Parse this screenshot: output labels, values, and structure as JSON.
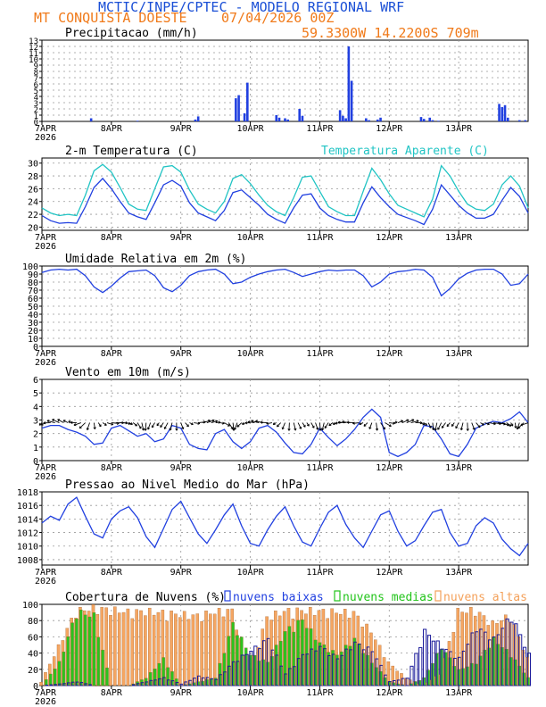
{
  "header": {
    "title": "MCTIC/INPE/CPTEC - MODELO REGIONAL WRF",
    "location": "MT CONQUISTA DOESTE",
    "run_time": "07/04/2026 00Z",
    "coordinates": "59.3300W 14.2200S 709m"
  },
  "colors": {
    "blue": "#2140e0",
    "cyan": "#21c4c4",
    "green": "#22c41a",
    "orange": "#f4a15a",
    "darkblue": "#1a1a9a",
    "arrow": "#000000"
  },
  "x_axis": {
    "tick_labels": [
      "7APR",
      "8APR",
      "9APR",
      "10APR",
      "11APR",
      "12APR",
      "13APR"
    ],
    "year_label": "2026",
    "hours_total": 168
  },
  "chart_data": [
    {
      "type": "bar",
      "title": "Precipitacao (mm/h)",
      "ylim": [
        0,
        13
      ],
      "yticks": [
        0,
        1,
        2,
        3,
        4,
        5,
        6,
        7,
        8,
        9,
        10,
        11,
        12,
        13
      ],
      "x_hours": [
        17,
        33,
        53,
        54,
        67,
        68,
        70,
        71,
        81,
        82,
        84,
        85,
        89,
        90,
        103,
        104,
        105,
        106,
        107,
        112,
        113,
        116,
        117,
        131,
        132,
        134,
        135,
        137,
        158,
        159,
        160,
        161,
        165,
        167
      ],
      "values": [
        0.5,
        0.1,
        0.3,
        0.8,
        3.7,
        4.2,
        1.3,
        6.2,
        1.0,
        0.6,
        0.5,
        0.3,
        2.0,
        0.9,
        1.8,
        0.9,
        0.5,
        12.0,
        6.5,
        0.5,
        0.2,
        0.3,
        0.6,
        0.7,
        0.4,
        0.6,
        0.2,
        0.1,
        2.8,
        2.3,
        2.6,
        0.6,
        0.2,
        0.2
      ]
    },
    {
      "type": "line",
      "title": "2-m Temperatura (C)",
      "legend_right": "Temperatura Aparente (C)",
      "ylim": [
        19.5,
        30.8
      ],
      "yticks": [
        20,
        22,
        24,
        26,
        28,
        30
      ],
      "series": [
        {
          "name": "2-m Temperatura (C)",
          "color": "blue",
          "x": [
            0,
            3,
            6,
            9,
            12,
            15,
            18,
            21,
            24,
            27,
            30,
            33,
            36,
            39,
            42,
            45,
            48,
            51,
            54,
            57,
            60,
            63,
            66,
            69,
            72,
            75,
            78,
            81,
            84,
            87,
            90,
            93,
            96,
            99,
            102,
            105,
            108,
            111,
            114,
            117,
            120,
            123,
            126,
            129,
            132,
            135,
            138,
            141,
            144,
            147,
            150,
            153,
            156,
            159,
            162,
            165,
            168
          ],
          "values": [
            21.8,
            21.0,
            20.6,
            20.7,
            20.6,
            23.2,
            26.2,
            27.6,
            26.0,
            24.0,
            22.2,
            21.6,
            21.2,
            23.8,
            26.6,
            27.3,
            26.4,
            23.8,
            22.2,
            21.6,
            21.0,
            22.6,
            25.4,
            25.8,
            24.6,
            23.4,
            22.0,
            21.2,
            20.6,
            23.0,
            25.0,
            25.2,
            23.0,
            21.8,
            21.2,
            20.8,
            20.8,
            23.8,
            26.3,
            24.6,
            23.2,
            22.0,
            21.5,
            21.0,
            20.4,
            22.8,
            26.6,
            25.0,
            23.4,
            22.2,
            21.4,
            21.4,
            22.0,
            24.2,
            26.2,
            24.8,
            22.2
          ]
        },
        {
          "name": "Temperatura Aparente (C)",
          "color": "cyan",
          "x": [
            0,
            3,
            6,
            9,
            12,
            15,
            18,
            21,
            24,
            27,
            30,
            33,
            36,
            39,
            42,
            45,
            48,
            51,
            54,
            57,
            60,
            63,
            66,
            69,
            72,
            75,
            78,
            81,
            84,
            87,
            90,
            93,
            96,
            99,
            102,
            105,
            108,
            111,
            114,
            117,
            120,
            123,
            126,
            129,
            132,
            135,
            138,
            141,
            144,
            147,
            150,
            153,
            156,
            159,
            162,
            165,
            168
          ],
          "values": [
            23.0,
            22.2,
            21.8,
            22.0,
            21.8,
            25.0,
            28.8,
            29.8,
            28.6,
            26.2,
            23.6,
            22.8,
            22.6,
            26.0,
            29.4,
            29.6,
            28.6,
            25.8,
            23.6,
            22.8,
            22.2,
            24.0,
            27.6,
            28.2,
            26.8,
            25.0,
            23.4,
            22.4,
            21.8,
            24.6,
            27.8,
            28.0,
            25.6,
            23.2,
            22.4,
            21.8,
            21.8,
            25.6,
            29.2,
            27.4,
            25.2,
            23.4,
            22.8,
            22.2,
            21.6,
            24.4,
            29.6,
            28.0,
            25.6,
            23.6,
            22.8,
            22.6,
            23.6,
            26.6,
            28.0,
            26.4,
            23.0
          ]
        }
      ]
    },
    {
      "type": "line",
      "title": "Umidade Relativa em 2m (%)",
      "ylim": [
        0,
        100
      ],
      "yticks": [
        0,
        10,
        20,
        30,
        40,
        50,
        60,
        70,
        80,
        90,
        100
      ],
      "series": [
        {
          "name": "Umidade Relativa em 2m (%)",
          "color": "blue",
          "x": [
            0,
            3,
            6,
            9,
            12,
            15,
            18,
            21,
            24,
            27,
            30,
            33,
            36,
            39,
            42,
            45,
            48,
            51,
            54,
            57,
            60,
            63,
            66,
            69,
            72,
            75,
            78,
            81,
            84,
            87,
            90,
            93,
            96,
            99,
            102,
            105,
            108,
            111,
            114,
            117,
            120,
            123,
            126,
            129,
            132,
            135,
            138,
            141,
            144,
            147,
            150,
            153,
            156,
            159,
            162,
            165,
            168
          ],
          "values": [
            92,
            95,
            96,
            95,
            96,
            88,
            74,
            67,
            75,
            85,
            93,
            94,
            95,
            88,
            73,
            68,
            76,
            88,
            93,
            95,
            96,
            90,
            78,
            80,
            86,
            90,
            93,
            95,
            96,
            92,
            87,
            90,
            93,
            95,
            94,
            95,
            95,
            88,
            74,
            80,
            90,
            93,
            94,
            96,
            95,
            86,
            63,
            72,
            84,
            91,
            95,
            96,
            96,
            90,
            76,
            78,
            90
          ]
        }
      ]
    },
    {
      "type": "line",
      "title": "Vento em 10m (m/s)",
      "ylim": [
        0,
        6
      ],
      "yticks": [
        0,
        1,
        2,
        3,
        4,
        5,
        6
      ],
      "arrow_baseline": 2.8,
      "series": [
        {
          "name": "Vento em 10m (m/s)",
          "color": "blue",
          "x": [
            0,
            3,
            6,
            9,
            12,
            15,
            18,
            21,
            24,
            27,
            30,
            33,
            36,
            39,
            42,
            45,
            48,
            51,
            54,
            57,
            60,
            63,
            66,
            69,
            72,
            75,
            78,
            81,
            84,
            87,
            90,
            93,
            96,
            99,
            102,
            105,
            108,
            111,
            114,
            117,
            120,
            123,
            126,
            129,
            132,
            135,
            138,
            141,
            144,
            147,
            150,
            153,
            156,
            159,
            162,
            165,
            168
          ],
          "values": [
            2.4,
            2.6,
            2.6,
            2.3,
            2.1,
            1.8,
            1.2,
            1.3,
            2.4,
            2.6,
            2.2,
            1.8,
            2.0,
            1.4,
            1.6,
            2.6,
            2.4,
            1.2,
            0.9,
            0.8,
            2.0,
            2.3,
            1.4,
            0.9,
            1.4,
            2.4,
            2.6,
            2.1,
            1.3,
            0.6,
            0.5,
            1.2,
            2.4,
            1.7,
            1.1,
            1.6,
            2.3,
            3.2,
            3.8,
            3.2,
            0.6,
            0.3,
            0.6,
            1.2,
            2.6,
            2.5,
            1.6,
            0.5,
            0.3,
            1.2,
            2.4,
            2.7,
            2.9,
            2.8,
            3.1,
            3.6,
            2.8
          ]
        }
      ]
    },
    {
      "type": "line",
      "title": "Pressao ao Nivel Medio do Mar (hPa)",
      "ylim": [
        1007.2,
        1018
      ],
      "yticks": [
        1008,
        1010,
        1012,
        1014,
        1016,
        1018
      ],
      "series": [
        {
          "name": "Pressao ao Nivel Medio do Mar (hPa)",
          "color": "blue",
          "x": [
            0,
            3,
            6,
            9,
            12,
            15,
            18,
            21,
            24,
            27,
            30,
            33,
            36,
            39,
            42,
            45,
            48,
            51,
            54,
            57,
            60,
            63,
            66,
            69,
            72,
            75,
            78,
            81,
            84,
            87,
            90,
            93,
            96,
            99,
            102,
            105,
            108,
            111,
            114,
            117,
            120,
            123,
            126,
            129,
            132,
            135,
            138,
            141,
            144,
            147,
            150,
            153,
            156,
            159,
            162,
            165,
            168
          ],
          "values": [
            1013.4,
            1014.4,
            1013.8,
            1016.2,
            1017.2,
            1014.4,
            1011.8,
            1011.2,
            1014.0,
            1015.2,
            1015.8,
            1014.2,
            1011.4,
            1009.8,
            1012.6,
            1015.4,
            1016.6,
            1014.2,
            1011.8,
            1010.4,
            1012.4,
            1014.6,
            1016.2,
            1013.0,
            1010.4,
            1010.0,
            1012.4,
            1014.4,
            1015.8,
            1013.0,
            1010.6,
            1010.0,
            1012.6,
            1015.0,
            1016.0,
            1013.2,
            1011.2,
            1009.8,
            1012.2,
            1014.6,
            1015.2,
            1012.2,
            1010.0,
            1010.8,
            1013.0,
            1015.0,
            1015.4,
            1012.0,
            1010.0,
            1010.4,
            1013.0,
            1014.2,
            1013.4,
            1011.0,
            1009.6,
            1008.6,
            1010.4
          ]
        }
      ]
    },
    {
      "type": "bar",
      "title": "Cobertura de Nuvens (%)",
      "ylim": [
        0,
        100
      ],
      "yticks": [
        0,
        20,
        40,
        60,
        80,
        100
      ],
      "legend": [
        "nuvens baixas",
        "nuvens medias",
        "nuvens altas"
      ],
      "series": [
        {
          "name": "nuvens altas",
          "color": "orange",
          "x": [
            0,
            12,
            18,
            24,
            30,
            36,
            42,
            48,
            54,
            60,
            66,
            72,
            78,
            84,
            90,
            96,
            102,
            108,
            114,
            120,
            126,
            132,
            138,
            144,
            150,
            156,
            162,
            168
          ],
          "values": [
            5,
            96,
            100,
            98,
            95,
            96,
            94,
            92,
            90,
            95,
            97,
            20,
            88,
            96,
            97,
            96,
            95,
            94,
            70,
            30,
            10,
            0,
            15,
            96,
            97,
            80,
            90,
            35
          ]
        },
        {
          "name": "nuvens medias",
          "color": "green",
          "x": [
            0,
            6,
            12,
            18,
            24,
            30,
            36,
            42,
            48,
            54,
            60,
            66,
            72,
            78,
            84,
            90,
            96,
            102,
            108,
            114,
            120,
            126,
            132,
            138,
            144,
            150,
            156,
            162,
            168
          ],
          "values": [
            0,
            30,
            95,
            90,
            0,
            0,
            10,
            35,
            0,
            5,
            10,
            80,
            40,
            30,
            70,
            85,
            55,
            40,
            60,
            30,
            5,
            0,
            10,
            50,
            20,
            30,
            60,
            40,
            10
          ]
        },
        {
          "name": "nuvens baixas",
          "color": "darkblue",
          "x": [
            0,
            6,
            12,
            18,
            24,
            30,
            36,
            42,
            48,
            54,
            60,
            66,
            72,
            78,
            84,
            90,
            96,
            102,
            108,
            114,
            120,
            126,
            132,
            138,
            144,
            150,
            156,
            162,
            168
          ],
          "values": [
            0,
            2,
            5,
            0,
            0,
            0,
            5,
            10,
            2,
            12,
            8,
            30,
            45,
            60,
            15,
            40,
            50,
            35,
            55,
            45,
            5,
            10,
            70,
            50,
            35,
            75,
            60,
            90,
            40
          ]
        }
      ]
    }
  ]
}
